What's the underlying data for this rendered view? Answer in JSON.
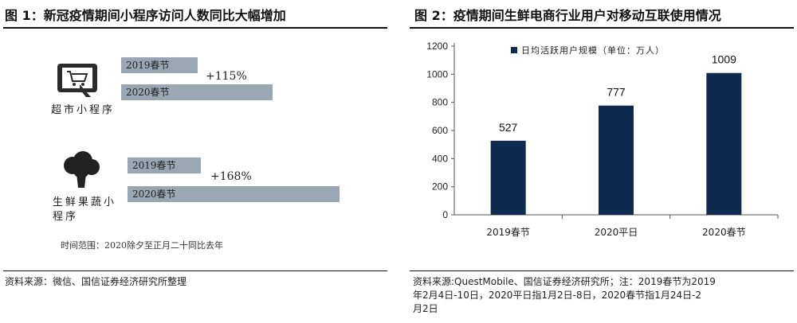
{
  "left_panel": {
    "title": "图 1：新冠疫情期间小程序访问人数同比大幅增加",
    "groups": [
      {
        "label": "超市小程序",
        "icon": "tablet-cart-icon",
        "bars": [
          {
            "label": "2019春节",
            "value": 1.0
          },
          {
            "label": "2020春节",
            "value": 2.15
          }
        ],
        "change": "+115%"
      },
      {
        "label": "生鲜果蔬小程序",
        "icon": "broccoli-icon",
        "bars": [
          {
            "label": "2019春节",
            "value": 1.0
          },
          {
            "label": "2020春节",
            "value": 2.68
          }
        ],
        "change": "+168%"
      }
    ],
    "note": "时间范围：2020除夕至正月二十同比去年",
    "source": "资料来源：微信、国信证券经济研究所整理"
  },
  "right_panel": {
    "title": "图 2：疫情期间生鲜电商行业用户对移动互联使用情况",
    "source_line1": "资料来源:QuestMobile、国信证券经济研究所；注：2019春节为2019",
    "source_line2": "年2月4日-10日，2020平日指1月2日-8日，2020春节指1月24日-2",
    "source_line3": "月2日"
  },
  "chart_data": {
    "type": "bar",
    "categories": [
      "2019春节",
      "2020平日",
      "2020春节"
    ],
    "series": [
      {
        "name": "日均活跃用户规模（单位：万人）",
        "values": [
          527,
          777,
          1009
        ]
      }
    ],
    "ylim": [
      0,
      1200
    ],
    "yticks": [
      0,
      200,
      400,
      600,
      800,
      1000,
      1200
    ],
    "legend": "top-left",
    "grid": false,
    "bar_color": "#0f2a4f"
  }
}
